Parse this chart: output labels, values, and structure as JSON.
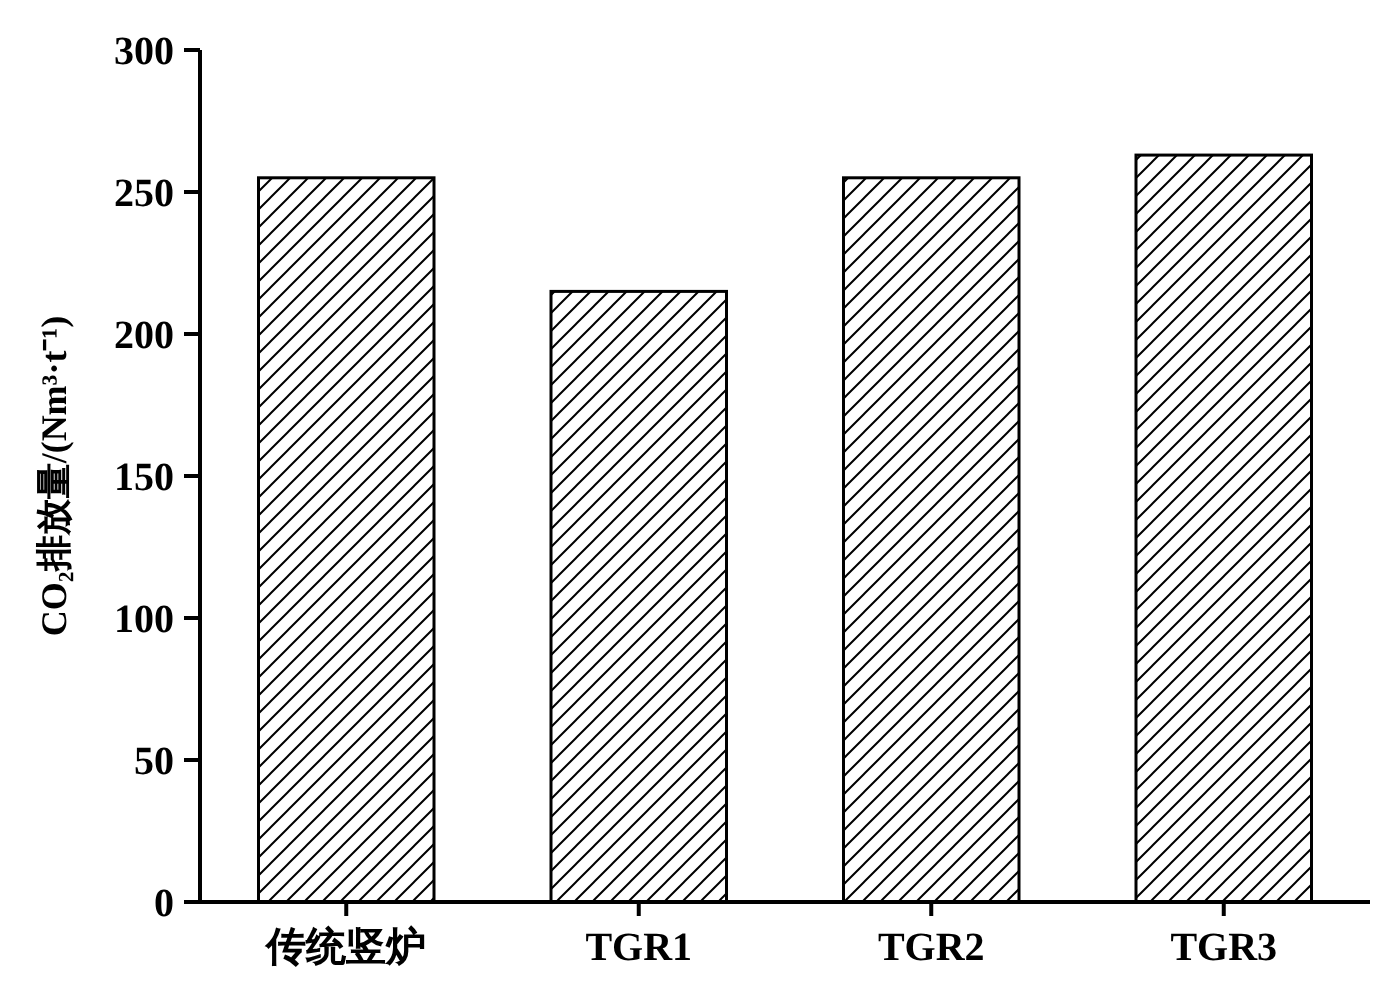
{
  "chart_data": {
    "type": "bar",
    "ylabel": "CO₂排放量/(Nm³·t⁻¹)",
    "categories": [
      "传统竖炉",
      "TGR1",
      "TGR2",
      "TGR3"
    ],
    "values": [
      255,
      215,
      255,
      263
    ],
    "color": "#000000",
    "ylim": [
      0,
      300
    ],
    "yticks": [
      0,
      50,
      100,
      150,
      200,
      250,
      300
    ]
  }
}
